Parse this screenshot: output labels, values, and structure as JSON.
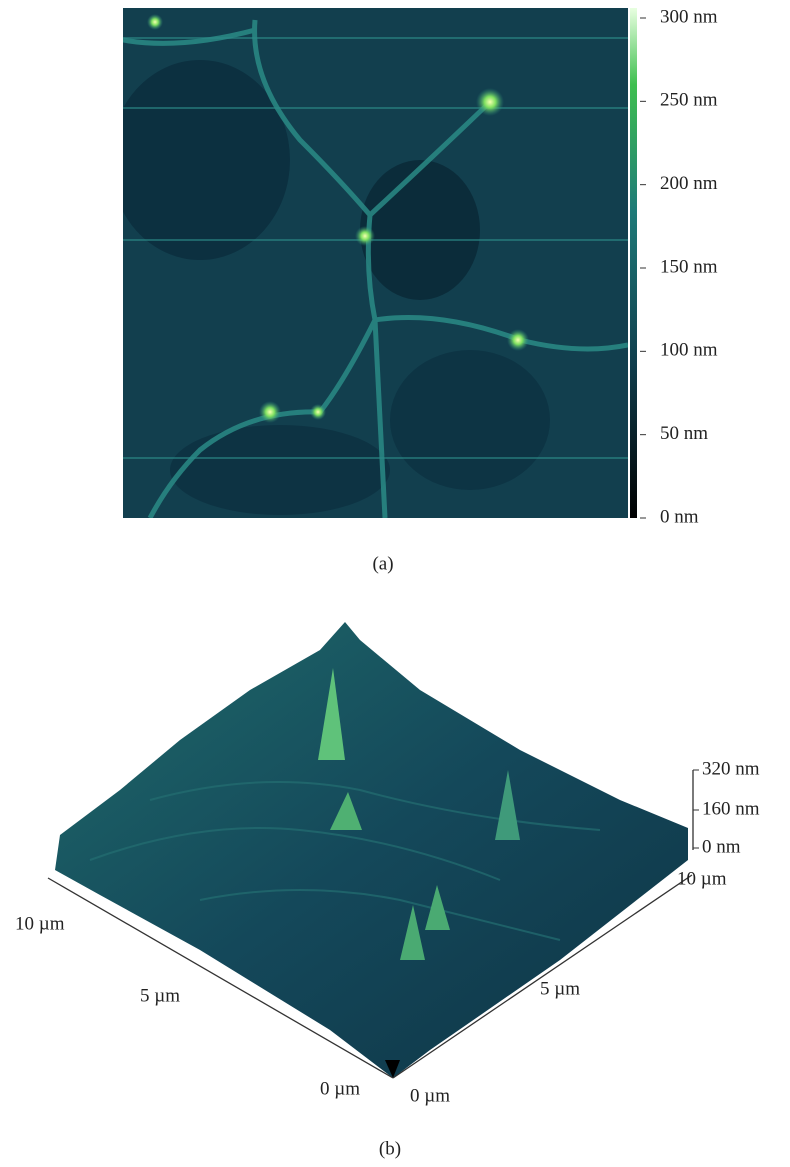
{
  "panel_a": {
    "colorbar_ticks": [
      "300 nm",
      "250 nm",
      "200 nm",
      "150 nm",
      "100 nm",
      "50 nm",
      "0 nm"
    ],
    "caption": "(a)"
  },
  "panel_b": {
    "z_ticks": [
      "320 nm",
      "160 nm",
      "0 nm"
    ],
    "left_axis_ticks": [
      "10 µm",
      "5 µm",
      "0 µm"
    ],
    "right_axis_ticks": [
      "0 µm",
      "5 µm",
      "10 µm"
    ],
    "caption": "(b)"
  }
}
